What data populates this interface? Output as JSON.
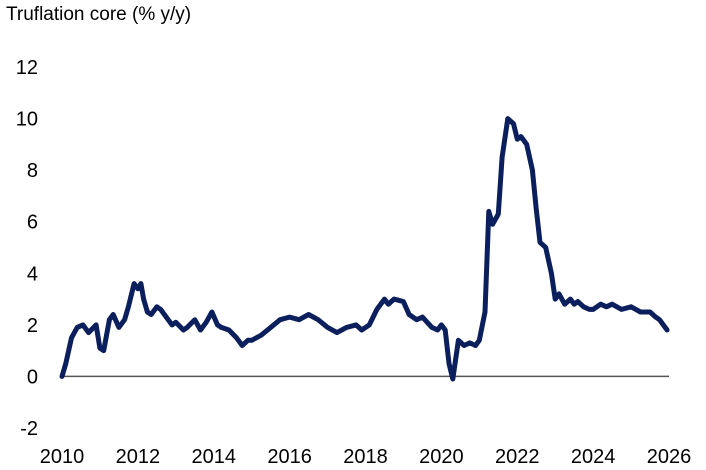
{
  "chart_data": {
    "type": "line",
    "title": "Truflation core (% y/y)",
    "xlabel": "",
    "ylabel": "",
    "xlim": [
      2010,
      2026
    ],
    "ylim": [
      -2,
      12
    ],
    "x_ticks": [
      "2010",
      "2012",
      "2014",
      "2016",
      "2018",
      "2020",
      "2022",
      "2024",
      "2026"
    ],
    "y_ticks": [
      "12",
      "10",
      "8",
      "6",
      "4",
      "2",
      "0",
      "-2"
    ],
    "zero_line": true,
    "grid": false,
    "legend": "none",
    "line_color": "#0b1f5c",
    "series": [
      {
        "x": [
          2010.0,
          2010.1,
          2010.25,
          2010.4,
          2010.55,
          2010.7,
          2010.9,
          2011.0,
          2011.1,
          2011.25,
          2011.35,
          2011.5,
          2011.65,
          2011.75,
          2011.9,
          2012.0,
          2012.08,
          2012.15,
          2012.25,
          2012.35,
          2012.5,
          2012.6,
          2012.75,
          2012.9,
          2013.0,
          2013.2,
          2013.3,
          2013.5,
          2013.65,
          2013.8,
          2013.95,
          2014.1,
          2014.2,
          2014.4,
          2014.6,
          2014.75,
          2014.9,
          2015.0,
          2015.25,
          2015.5,
          2015.75,
          2016.0,
          2016.25,
          2016.5,
          2016.75,
          2017.0,
          2017.25,
          2017.5,
          2017.75,
          2017.9,
          2018.1,
          2018.3,
          2018.5,
          2018.6,
          2018.75,
          2019.0,
          2019.15,
          2019.35,
          2019.5,
          2019.75,
          2019.9,
          2020.0,
          2020.1,
          2020.2,
          2020.3,
          2020.45,
          2020.6,
          2020.75,
          2020.9,
          2021.0,
          2021.15,
          2021.25,
          2021.35,
          2021.5,
          2021.6,
          2021.75,
          2021.9,
          2022.0,
          2022.1,
          2022.25,
          2022.4,
          2022.5,
          2022.6,
          2022.75,
          2022.9,
          2023.0,
          2023.1,
          2023.25,
          2023.4,
          2023.5,
          2023.6,
          2023.75,
          2023.9,
          2024.0,
          2024.2,
          2024.35,
          2024.5,
          2024.75,
          2025.0,
          2025.25,
          2025.5,
          2025.65,
          2025.75,
          2025.85,
          2025.95
        ],
        "values": [
          0.0,
          0.5,
          1.5,
          1.9,
          2.0,
          1.7,
          2.0,
          1.1,
          1.0,
          2.2,
          2.4,
          1.9,
          2.2,
          2.7,
          3.6,
          3.4,
          3.6,
          3.0,
          2.5,
          2.4,
          2.7,
          2.6,
          2.3,
          2.0,
          2.1,
          1.8,
          1.9,
          2.2,
          1.8,
          2.1,
          2.5,
          2.0,
          1.9,
          1.8,
          1.5,
          1.2,
          1.4,
          1.4,
          1.6,
          1.9,
          2.2,
          2.3,
          2.2,
          2.4,
          2.2,
          1.9,
          1.7,
          1.9,
          2.0,
          1.8,
          2.0,
          2.6,
          3.0,
          2.8,
          3.0,
          2.9,
          2.4,
          2.2,
          2.3,
          1.9,
          1.8,
          2.0,
          1.8,
          0.5,
          -0.1,
          1.4,
          1.2,
          1.3,
          1.2,
          1.4,
          2.5,
          6.4,
          5.9,
          6.3,
          8.5,
          10.0,
          9.8,
          9.2,
          9.3,
          9.0,
          8.0,
          6.5,
          5.2,
          5.0,
          4.0,
          3.0,
          3.2,
          2.8,
          3.0,
          2.8,
          2.9,
          2.7,
          2.6,
          2.6,
          2.8,
          2.7,
          2.8,
          2.6,
          2.7,
          2.5,
          2.5,
          2.3,
          2.2,
          2.0,
          1.8
        ]
      }
    ]
  }
}
